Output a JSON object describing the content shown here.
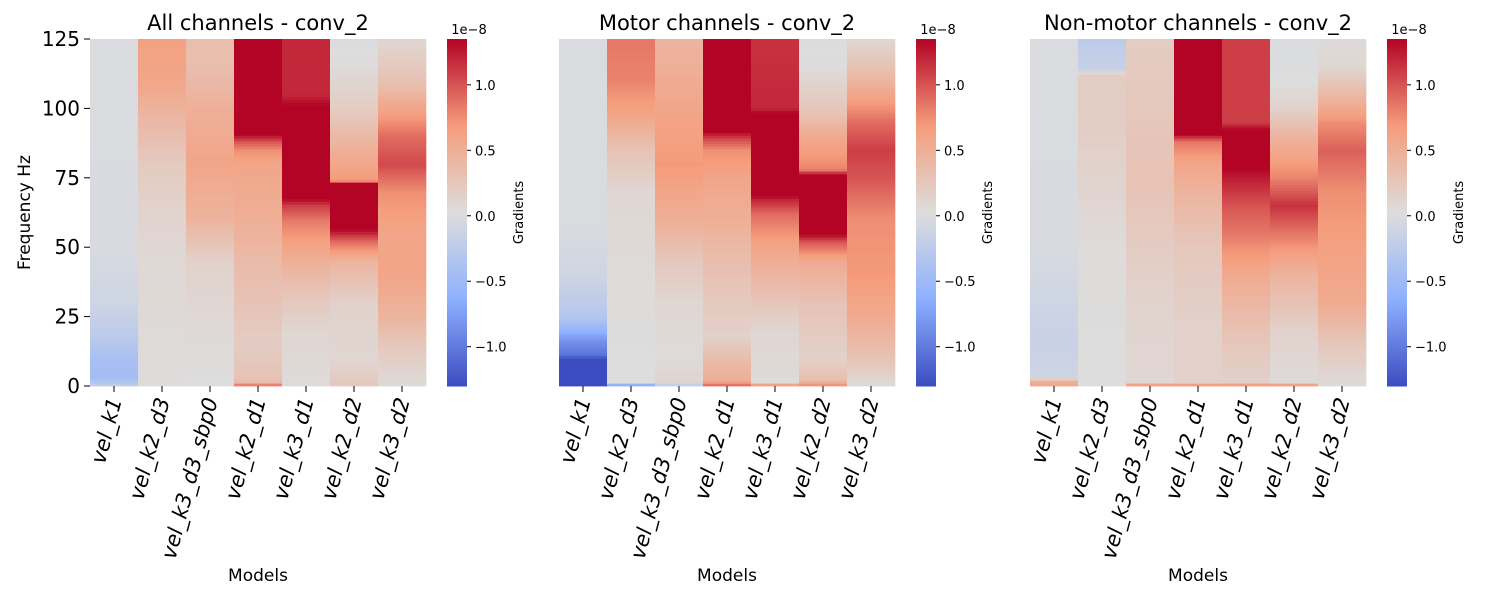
{
  "chart_data": [
    {
      "type": "heatmap",
      "title": "All channels - conv_2",
      "xlabel": "Models",
      "ylabel": "Frequency Hz",
      "categories": [
        "vel_k1",
        "vel_k2_d3",
        "vel_k3_d3_sbp0",
        "vel_k2_d1",
        "vel_k3_d1",
        "vel_k2_d2",
        "vel_k3_d2"
      ],
      "yticks": [
        0,
        25,
        50,
        75,
        100,
        125
      ],
      "ylim": [
        0,
        125
      ],
      "colorbar": {
        "label": "Gradients",
        "offset_label": "1e−8",
        "ticks": [
          "−1.0",
          "−0.5",
          "0.0",
          "0.5",
          "1.0"
        ],
        "range": [
          -1.3,
          1.35
        ]
      },
      "series": [
        {
          "name": "vel_k1",
          "profile": [
            [
              0,
              -0.18
            ],
            [
              3,
              -0.45
            ],
            [
              10,
              -0.4
            ],
            [
              18,
              -0.25
            ],
            [
              30,
              -0.1
            ],
            [
              50,
              -0.02
            ],
            [
              125,
              0.0
            ]
          ]
        },
        {
          "name": "vel_k2_d3",
          "profile": [
            [
              0,
              0.05
            ],
            [
              20,
              0.06
            ],
            [
              45,
              0.08
            ],
            [
              60,
              0.12
            ],
            [
              80,
              0.22
            ],
            [
              95,
              0.4
            ],
            [
              110,
              0.6
            ],
            [
              125,
              0.65
            ]
          ]
        },
        {
          "name": "vel_k3_d3_sbp0",
          "profile": [
            [
              0,
              0.02
            ],
            [
              25,
              0.08
            ],
            [
              45,
              0.15
            ],
            [
              60,
              0.45
            ],
            [
              80,
              0.6
            ],
            [
              100,
              0.5
            ],
            [
              115,
              0.35
            ],
            [
              125,
              0.35
            ]
          ]
        },
        {
          "name": "vel_k2_d1",
          "profile": [
            [
              0,
              1.2
            ],
            [
              1,
              0.4
            ],
            [
              3,
              0.3
            ],
            [
              15,
              0.2
            ],
            [
              40,
              0.35
            ],
            [
              60,
              0.5
            ],
            [
              80,
              0.6
            ],
            [
              85,
              0.75
            ],
            [
              88,
              1.0
            ],
            [
              91,
              1.4
            ],
            [
              125,
              1.4
            ]
          ]
        },
        {
          "name": "vel_k3_d1",
          "profile": [
            [
              0,
              0.05
            ],
            [
              20,
              0.1
            ],
            [
              35,
              0.3
            ],
            [
              50,
              0.6
            ],
            [
              60,
              0.85
            ],
            [
              65,
              1.1
            ],
            [
              68,
              1.4
            ],
            [
              100,
              1.4
            ],
            [
              105,
              1.2
            ],
            [
              125,
              1.2
            ]
          ]
        },
        {
          "name": "vel_k2_d2",
          "profile": [
            [
              0,
              0.25
            ],
            [
              10,
              0.1
            ],
            [
              30,
              0.15
            ],
            [
              45,
              0.45
            ],
            [
              52,
              0.9
            ],
            [
              57,
              1.4
            ],
            [
              73,
              1.4
            ],
            [
              74,
              0.7
            ],
            [
              85,
              0.5
            ],
            [
              100,
              0.2
            ],
            [
              115,
              0.05
            ],
            [
              125,
              0.0
            ]
          ]
        },
        {
          "name": "vel_k3_d2",
          "profile": [
            [
              0,
              0.05
            ],
            [
              15,
              0.25
            ],
            [
              25,
              0.45
            ],
            [
              40,
              0.6
            ],
            [
              55,
              0.6
            ],
            [
              70,
              0.75
            ],
            [
              80,
              1.05
            ],
            [
              90,
              0.9
            ],
            [
              100,
              0.6
            ],
            [
              110,
              0.3
            ],
            [
              125,
              0.1
            ]
          ]
        }
      ]
    },
    {
      "type": "heatmap",
      "title": "Motor channels - conv_2",
      "xlabel": "Models",
      "ylabel": "",
      "categories": [
        "vel_k1",
        "vel_k2_d3",
        "vel_k3_d3_sbp0",
        "vel_k2_d1",
        "vel_k3_d1",
        "vel_k2_d2",
        "vel_k3_d2"
      ],
      "yticks": [],
      "ylim": [
        0,
        125
      ],
      "colorbar": {
        "label": "Gradients",
        "offset_label": "1e−8",
        "ticks": [
          "−1.0",
          "−0.5",
          "0.0",
          "0.5",
          "1.0"
        ],
        "range": [
          -1.3,
          1.35
        ]
      },
      "series": [
        {
          "name": "vel_k1",
          "profile": [
            [
              0,
              -1.3
            ],
            [
              10,
              -1.3
            ],
            [
              11,
              -1.05
            ],
            [
              16,
              -0.85
            ],
            [
              20,
              -0.6
            ],
            [
              25,
              -0.3
            ],
            [
              40,
              -0.1
            ],
            [
              60,
              0.0
            ],
            [
              125,
              0.0
            ]
          ]
        },
        {
          "name": "vel_k2_d3",
          "profile": [
            [
              0,
              -1.2
            ],
            [
              1,
              0.02
            ],
            [
              40,
              0.05
            ],
            [
              70,
              0.1
            ],
            [
              85,
              0.3
            ],
            [
              100,
              0.65
            ],
            [
              110,
              0.8
            ],
            [
              125,
              0.85
            ]
          ]
        },
        {
          "name": "vel_k3_d3_sbp0",
          "profile": [
            [
              0,
              -0.5
            ],
            [
              1,
              0.12
            ],
            [
              10,
              0.05
            ],
            [
              30,
              0.1
            ],
            [
              45,
              0.25
            ],
            [
              60,
              0.5
            ],
            [
              80,
              0.7
            ],
            [
              100,
              0.6
            ],
            [
              115,
              0.5
            ],
            [
              125,
              0.45
            ]
          ]
        },
        {
          "name": "vel_k2_d1",
          "profile": [
            [
              0,
              1.0
            ],
            [
              2,
              0.5
            ],
            [
              8,
              0.4
            ],
            [
              18,
              0.15
            ],
            [
              40,
              0.3
            ],
            [
              60,
              0.5
            ],
            [
              75,
              0.6
            ],
            [
              85,
              0.75
            ],
            [
              89,
              1.05
            ],
            [
              92,
              1.4
            ],
            [
              125,
              1.4
            ]
          ]
        },
        {
          "name": "vel_k3_d1",
          "profile": [
            [
              0,
              1.2
            ],
            [
              1,
              0.05
            ],
            [
              20,
              0.1
            ],
            [
              35,
              0.35
            ],
            [
              50,
              0.6
            ],
            [
              62,
              0.9
            ],
            [
              67,
              1.2
            ],
            [
              69,
              1.4
            ],
            [
              98,
              1.4
            ],
            [
              100,
              1.2
            ],
            [
              125,
              1.15
            ]
          ]
        },
        {
          "name": "vel_k2_d2",
          "profile": [
            [
              0,
              0.85
            ],
            [
              2,
              0.35
            ],
            [
              10,
              0.15
            ],
            [
              30,
              0.3
            ],
            [
              45,
              0.55
            ],
            [
              52,
              1.0
            ],
            [
              55,
              1.4
            ],
            [
              76,
              1.4
            ],
            [
              78,
              0.8
            ],
            [
              90,
              0.55
            ],
            [
              100,
              0.25
            ],
            [
              115,
              0.05
            ],
            [
              125,
              0.0
            ]
          ]
        },
        {
          "name": "vel_k3_d2",
          "profile": [
            [
              0,
              0.05
            ],
            [
              10,
              0.3
            ],
            [
              25,
              0.55
            ],
            [
              40,
              0.7
            ],
            [
              60,
              0.75
            ],
            [
              75,
              1.0
            ],
            [
              85,
              1.1
            ],
            [
              95,
              0.9
            ],
            [
              105,
              0.6
            ],
            [
              115,
              0.3
            ],
            [
              125,
              0.1
            ]
          ]
        }
      ]
    },
    {
      "type": "heatmap",
      "title": "Non-motor channels - conv_2",
      "xlabel": "Models",
      "ylabel": "",
      "categories": [
        "vel_k1",
        "vel_k2_d3",
        "vel_k3_d3_sbp0",
        "vel_k2_d1",
        "vel_k3_d1",
        "vel_k2_d2",
        "vel_k3_d2"
      ],
      "yticks": [],
      "ylim": [
        0,
        125
      ],
      "colorbar": {
        "label": "Gradients",
        "offset_label": "1e−8",
        "ticks": [
          "−1.0",
          "−0.5",
          "0.0",
          "0.5",
          "1.0"
        ],
        "range": [
          -1.3,
          1.35
        ]
      },
      "series": [
        {
          "name": "vel_k1",
          "profile": [
            [
              0,
              0.6
            ],
            [
              2,
              0.5
            ],
            [
              3,
              -0.1
            ],
            [
              15,
              -0.15
            ],
            [
              30,
              -0.1
            ],
            [
              50,
              -0.02
            ],
            [
              125,
              0.0
            ]
          ]
        },
        {
          "name": "vel_k2_d3",
          "profile": [
            [
              0,
              0.02
            ],
            [
              20,
              0.03
            ],
            [
              50,
              0.05
            ],
            [
              80,
              0.15
            ],
            [
              100,
              0.2
            ],
            [
              112,
              0.2
            ],
            [
              114,
              -0.15
            ],
            [
              125,
              -0.25
            ]
          ]
        },
        {
          "name": "vel_k3_d3_sbp0",
          "profile": [
            [
              0,
              1.2
            ],
            [
              1,
              0.1
            ],
            [
              25,
              0.12
            ],
            [
              50,
              0.2
            ],
            [
              75,
              0.3
            ],
            [
              100,
              0.25
            ],
            [
              125,
              0.2
            ]
          ]
        },
        {
          "name": "vel_k2_d1",
          "profile": [
            [
              0,
              1.2
            ],
            [
              1,
              0.15
            ],
            [
              20,
              0.15
            ],
            [
              50,
              0.25
            ],
            [
              70,
              0.45
            ],
            [
              80,
              0.6
            ],
            [
              88,
              0.85
            ],
            [
              91,
              1.4
            ],
            [
              125,
              1.4
            ]
          ]
        },
        {
          "name": "vel_k3_d1",
          "profile": [
            [
              0,
              1.2
            ],
            [
              1,
              0.15
            ],
            [
              20,
              0.3
            ],
            [
              40,
              0.55
            ],
            [
              55,
              0.85
            ],
            [
              65,
              1.0
            ],
            [
              75,
              1.25
            ],
            [
              80,
              1.4
            ],
            [
              92,
              1.4
            ],
            [
              95,
              1.1
            ],
            [
              125,
              1.1
            ]
          ]
        },
        {
          "name": "vel_k2_d2",
          "profile": [
            [
              0,
              1.2
            ],
            [
              1,
              0.05
            ],
            [
              20,
              0.15
            ],
            [
              40,
              0.45
            ],
            [
              55,
              0.85
            ],
            [
              65,
              1.15
            ],
            [
              75,
              0.8
            ],
            [
              90,
              0.45
            ],
            [
              100,
              0.15
            ],
            [
              110,
              0.02
            ],
            [
              125,
              0.0
            ]
          ]
        },
        {
          "name": "vel_k3_d2",
          "profile": [
            [
              0,
              0.05
            ],
            [
              15,
              0.25
            ],
            [
              30,
              0.55
            ],
            [
              50,
              0.65
            ],
            [
              70,
              0.75
            ],
            [
              85,
              0.95
            ],
            [
              95,
              0.75
            ],
            [
              105,
              0.4
            ],
            [
              115,
              0.1
            ],
            [
              125,
              0.05
            ]
          ]
        }
      ]
    }
  ]
}
